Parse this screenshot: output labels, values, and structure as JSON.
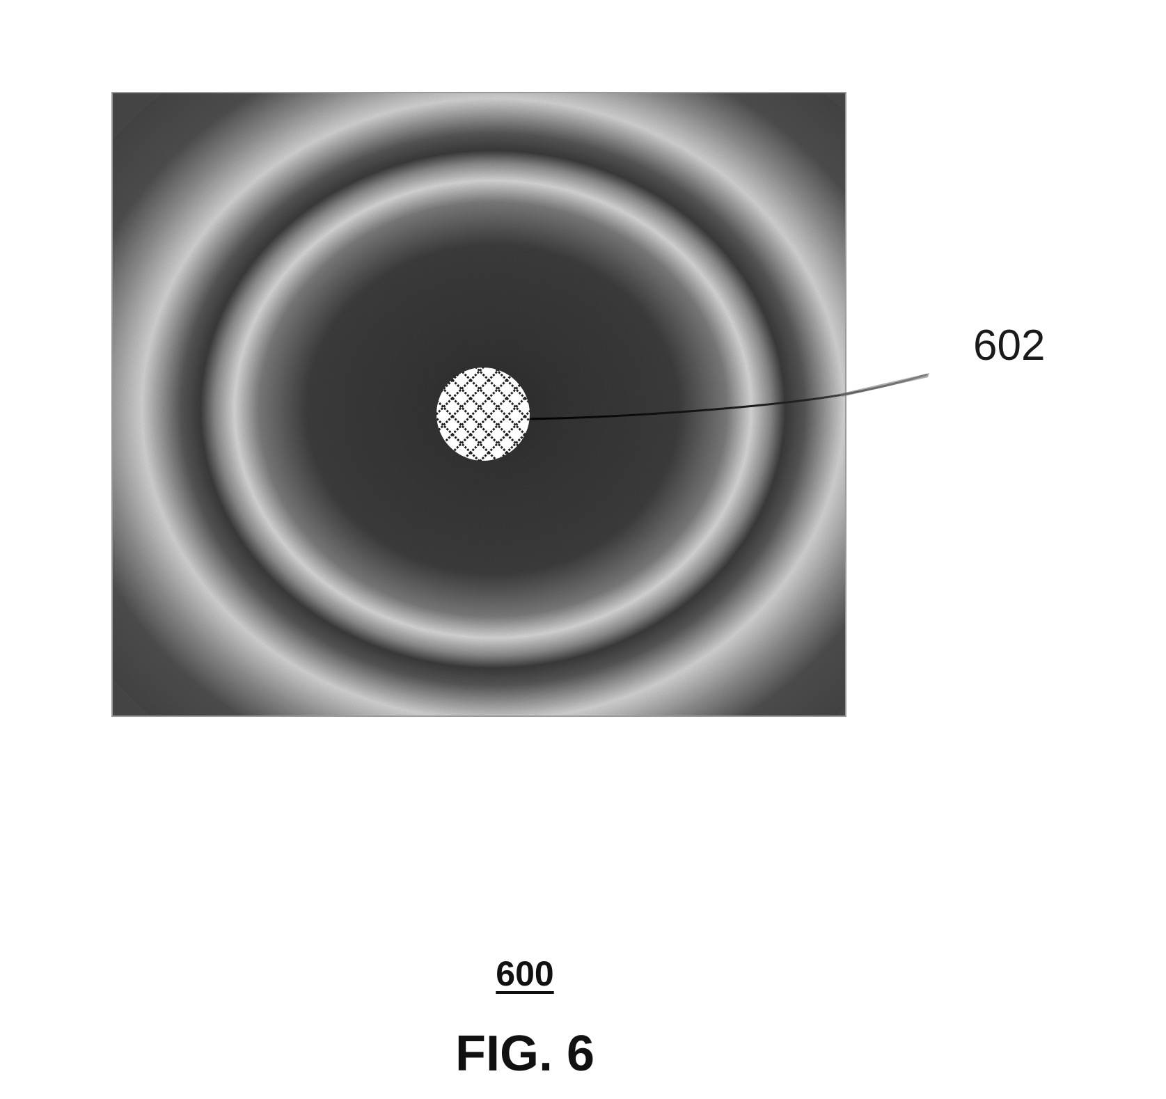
{
  "figure": {
    "reference_label": "602",
    "figure_number": "600",
    "caption": "FIG. 6"
  },
  "colors": {
    "background": "#ffffff",
    "dark_field": "#3a3a3a",
    "light_ring": "#d8d8d8",
    "center_spot": "#ffffff",
    "hatch": "#222222",
    "text": "#111111"
  }
}
